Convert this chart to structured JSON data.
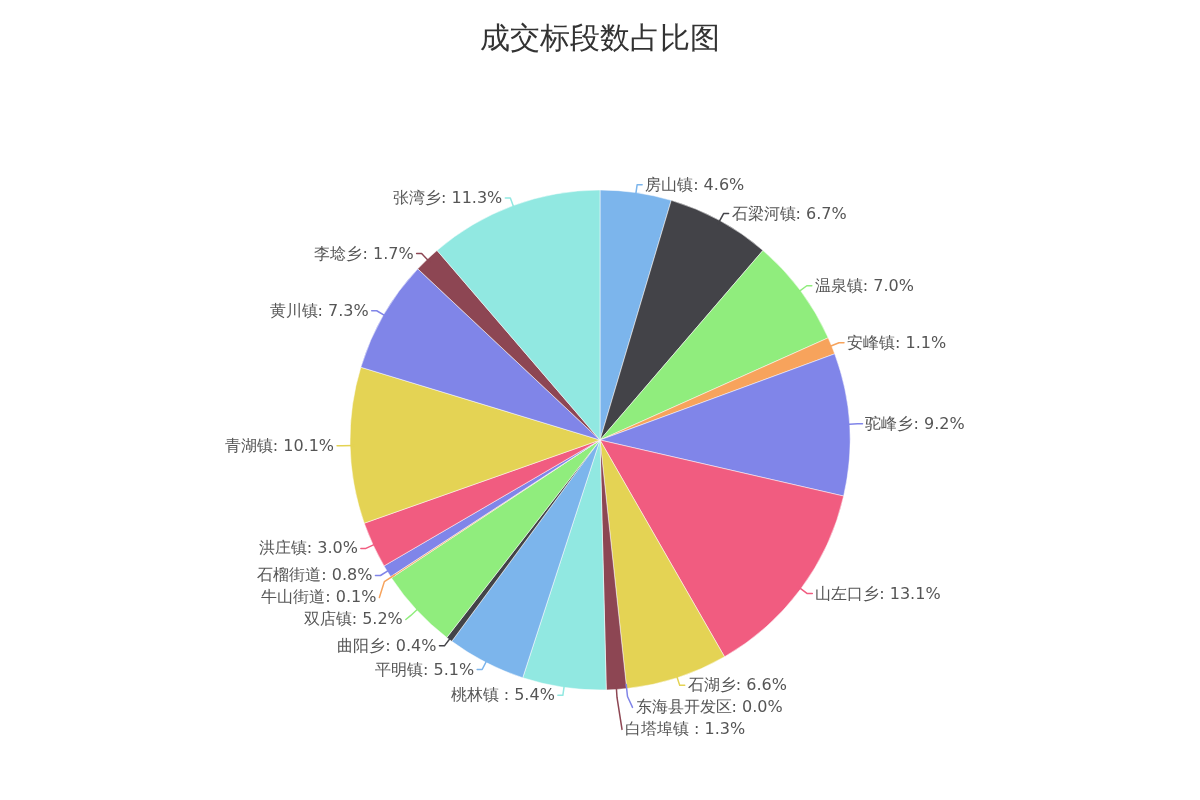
{
  "chart_data": {
    "type": "pie",
    "title": "成交标段数占比图",
    "categories": [
      "房山镇",
      "石梁河镇",
      "温泉镇",
      "安峰镇",
      "驼峰乡",
      "山左口乡",
      "石湖乡",
      "东海县开发区",
      "白塔埠镇 ",
      "桃林镇 ",
      "平明镇",
      "曲阳乡",
      "双店镇",
      "牛山街道",
      "石榴街道",
      "洪庄镇",
      "青湖镇",
      "黄川镇",
      "李埝乡",
      "张湾乡"
    ],
    "values": [
      4.6,
      6.7,
      7.0,
      1.1,
      9.2,
      13.1,
      6.6,
      0.0,
      1.3,
      5.4,
      5.1,
      0.4,
      5.2,
      0.1,
      0.8,
      3.0,
      10.1,
      7.3,
      1.7,
      11.3
    ],
    "value_labels": [
      "4.6%",
      "6.7%",
      "7.0%",
      "1.1%",
      "9.2%",
      "13.1%",
      "6.6%",
      "0.0%",
      "1.3%",
      "5.4%",
      "5.1%",
      "0.4%",
      "5.2%",
      "0.1%",
      "0.8%",
      "3.0%",
      "10.1%",
      "7.3%",
      "1.7%",
      "11.3%"
    ],
    "colors": [
      "#7cb5ec",
      "#434348",
      "#90ed7d",
      "#f7a35c",
      "#8085e9",
      "#f15c80",
      "#e4d354",
      "#8085e8",
      "#8d4653",
      "#91e8e1",
      "#7cb5ec",
      "#434348",
      "#90ed7d",
      "#f7a35c",
      "#8085e9",
      "#f15c80",
      "#e4d354",
      "#8085e8",
      "#8d4653",
      "#91e8e1"
    ]
  }
}
